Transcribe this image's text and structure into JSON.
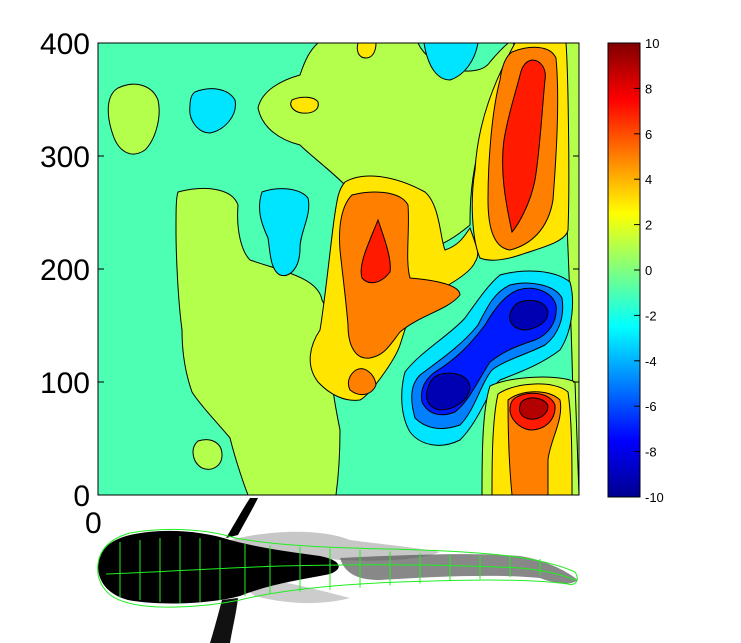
{
  "chart_data": {
    "type": "heatmap",
    "subtype": "filled-contour",
    "title": "",
    "xlabel": "",
    "ylabel": "",
    "ylim": [
      0,
      400
    ],
    "yticks": [
      0,
      100,
      200,
      300,
      400
    ],
    "ytick_labels": [
      "0",
      "100",
      "200",
      "300",
      "400"
    ],
    "xtick_labels_visible": [
      "0"
    ],
    "grid": false,
    "colormap": "jet",
    "colorbar": {
      "range": [
        -10,
        10
      ],
      "ticks": [
        -10,
        -8,
        -6,
        -4,
        -2,
        0,
        2,
        4,
        6,
        8,
        10
      ],
      "tick_labels": [
        "-10",
        "-8",
        "-6",
        "-4",
        "-2",
        "0",
        "2",
        "4",
        "6",
        "8",
        "10"
      ]
    },
    "contour_levels": [
      -8,
      -6,
      -4,
      -2,
      0,
      2,
      4,
      6,
      8,
      10
    ],
    "regions": [
      {
        "name": "background",
        "value": -1
      },
      {
        "name": "left-plateau",
        "value": 1
      },
      {
        "name": "upper-band",
        "value": 1
      },
      {
        "name": "right-strip",
        "value": 1
      },
      {
        "name": "island-topleft",
        "value": 1
      },
      {
        "name": "island-bottomleft",
        "value": 1
      },
      {
        "name": "cyan-hole-left",
        "value": -3
      },
      {
        "name": "cyan-hole-center",
        "value": -3
      },
      {
        "name": "cyan-hole-top",
        "value": -3
      },
      {
        "name": "yellow-dot-top",
        "value": 3
      },
      {
        "name": "yellow-dot-small",
        "value": 3
      },
      {
        "name": "central-ridge",
        "value": 3
      },
      {
        "name": "central-peak",
        "value": 5
      },
      {
        "name": "central-core",
        "value": 7
      },
      {
        "name": "central-lobe",
        "value": 5
      },
      {
        "name": "diag-ridge",
        "value": 3
      },
      {
        "name": "diag-peak",
        "value": 5
      },
      {
        "name": "diag-core",
        "value": 7
      },
      {
        "name": "blue-valley-outer",
        "value": -3
      },
      {
        "name": "blue-valley-mid",
        "value": -5
      },
      {
        "name": "blue-valley-inner",
        "value": -7
      },
      {
        "name": "blue-valley-deep-a",
        "value": -9
      },
      {
        "name": "blue-valley-deep-b",
        "value": -9
      },
      {
        "name": "br-peak-outer",
        "value": 1
      },
      {
        "name": "br-peak-yellow",
        "value": 3
      },
      {
        "name": "br-peak-orange",
        "value": 5
      },
      {
        "name": "br-peak-red",
        "value": 7
      },
      {
        "name": "br-peak-core",
        "value": 9
      }
    ]
  },
  "overlay_image": {
    "subject": "fish-silhouette",
    "mesh_color": "#22ee22"
  }
}
